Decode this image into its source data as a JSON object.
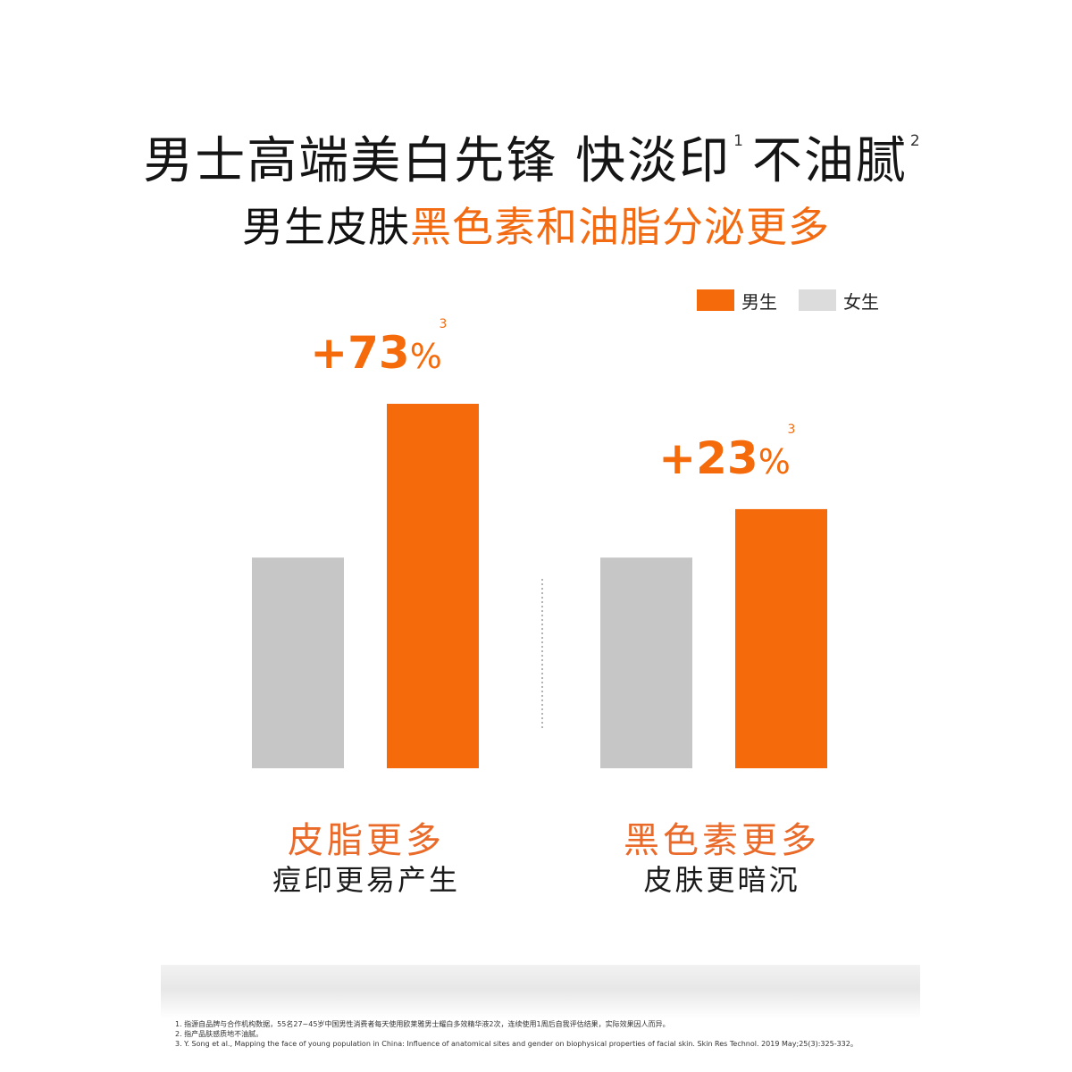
{
  "headline": {
    "part1": "男士高端美白先锋 快淡印",
    "sup1": "1",
    "part2": "不油腻",
    "sup2": "2"
  },
  "subhead": {
    "plain": "男生皮肤",
    "highlight": "黑色素和油脂分泌更多"
  },
  "legend": [
    {
      "label": "男生",
      "color": "#f56b0c"
    },
    {
      "label": "女生",
      "color": "#dcdcdc"
    }
  ],
  "colors": {
    "male": "#f56b0c",
    "female": "#c6c6c6",
    "accent_text": "#ea6a2a",
    "value_label": "#f56b0c",
    "divider": "#9a9a9a"
  },
  "chart_data": {
    "type": "bar",
    "categories": [
      "皮脂更多",
      "黑色素更多"
    ],
    "series": [
      {
        "name": "女生",
        "values": [
          100,
          100
        ]
      },
      {
        "name": "男生",
        "values": [
          173,
          123
        ]
      }
    ],
    "value_labels": [
      {
        "text": "+73",
        "unit": "%",
        "sup": "3"
      },
      {
        "text": "+23",
        "unit": "%",
        "sup": "3"
      }
    ],
    "ylim": [
      0,
      180
    ],
    "grid": false,
    "legend_position": "top-right"
  },
  "categories": [
    {
      "title": "皮脂更多",
      "subtitle": "痘印更易产生"
    },
    {
      "title": "黑色素更多",
      "subtitle": "皮肤更暗沉"
    }
  ],
  "footnotes": [
    "1. 指源自品牌与合作机构数据，55名27~45岁中国男性消费者每天使用欧莱雅男士耀白多效精华液2次，连续使用1周后自我评估结果，实际效果因人而异。",
    "2. 指产品肤感质地不油腻。",
    "3. Y. Song et al., Mapping the face of young population in China: Influence of anatomical sites and gender on biophysical properties of facial skin. Skin Res Technol. 2019 May;25(3):325-332。"
  ]
}
